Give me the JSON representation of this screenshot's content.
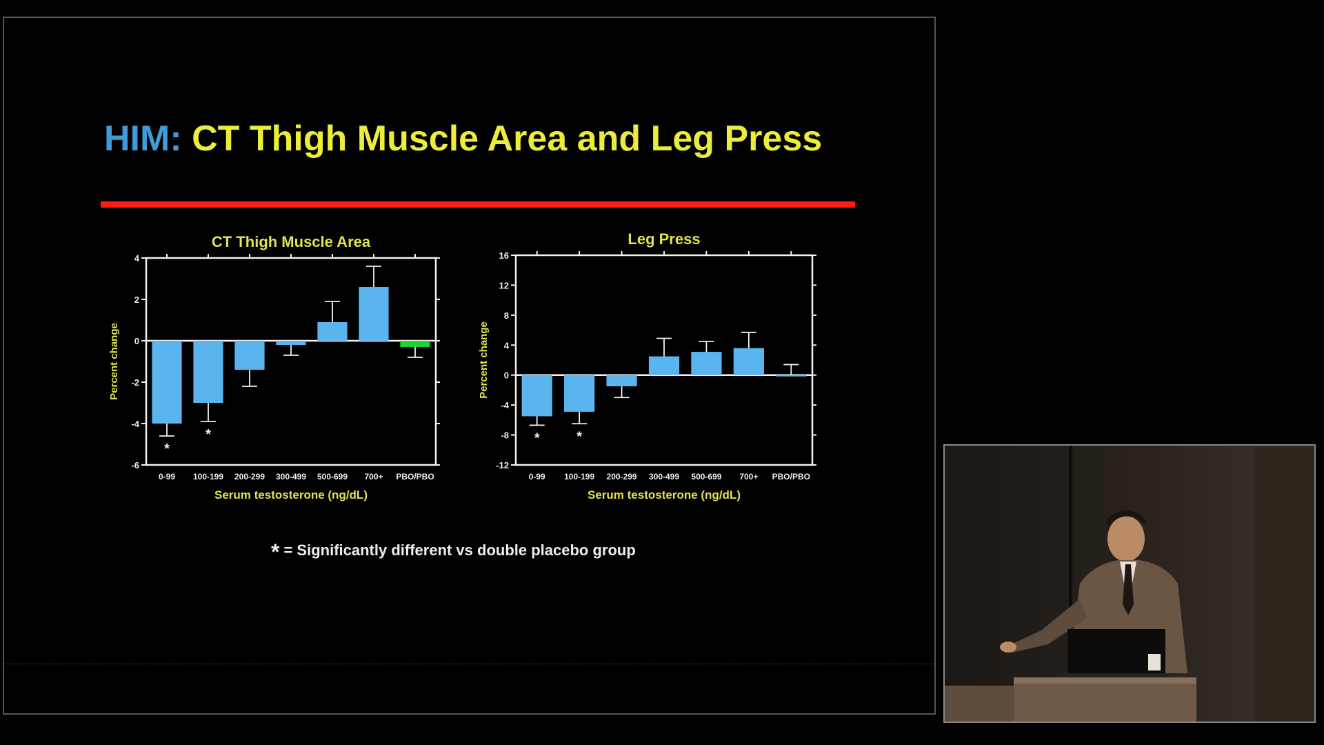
{
  "slide": {
    "title_prefix": "HIM:",
    "title_main": "CT Thigh Muscle Area and Leg Press",
    "footnote_star": "*",
    "footnote_text": "= Significantly different vs double placebo group",
    "colors": {
      "title_blue": "#3f9bda",
      "title_yellow": "#ecec3a",
      "rule": "#ff1a12",
      "bar": "#5ab4ee",
      "placebo_bar": "#1fd52a",
      "axis_text": "#e3e24e"
    }
  },
  "chart_data": [
    {
      "type": "bar",
      "title": "CT Thigh Muscle Area",
      "xlabel": "Serum testosterone (ng/dL)",
      "ylabel": "Percent change",
      "categories": [
        "0-99",
        "100-199",
        "200-299",
        "300-499",
        "500-699",
        "700+",
        "PBO/PBO"
      ],
      "values": [
        -4.0,
        -3.0,
        -1.4,
        -0.2,
        0.9,
        2.6,
        -0.3
      ],
      "errors": [
        0.6,
        0.9,
        0.8,
        0.5,
        1.0,
        1.0,
        0.5
      ],
      "significant": [
        "*",
        "*",
        "",
        "",
        "",
        "",
        ""
      ],
      "bar_colors": [
        "#5ab4ee",
        "#5ab4ee",
        "#5ab4ee",
        "#5ab4ee",
        "#5ab4ee",
        "#5ab4ee",
        "#1fd52a"
      ],
      "ylim": [
        -6,
        4
      ],
      "yticks": [
        "-6",
        "-4",
        "-2",
        "0",
        "2",
        "4"
      ],
      "grid": false
    },
    {
      "type": "bar",
      "title": "Leg Press",
      "xlabel": "Serum testosterone (ng/dL)",
      "ylabel": "Percent change",
      "categories": [
        "0-99",
        "100-199",
        "200-299",
        "300-499",
        "500-699",
        "700+",
        "PBO/PBO"
      ],
      "values": [
        -5.5,
        -4.9,
        -1.5,
        2.5,
        3.1,
        3.6,
        0.0
      ],
      "errors": [
        1.2,
        1.6,
        1.5,
        2.4,
        1.4,
        2.1,
        1.4
      ],
      "significant": [
        "*",
        "*",
        "",
        "",
        "",
        "",
        ""
      ],
      "bar_colors": [
        "#5ab4ee",
        "#5ab4ee",
        "#5ab4ee",
        "#5ab4ee",
        "#5ab4ee",
        "#5ab4ee",
        "#5ab4ee"
      ],
      "ylim": [
        -12,
        16
      ],
      "yticks": [
        "-12",
        "-8",
        "-4",
        "0",
        "4",
        "8",
        "12",
        "16"
      ],
      "grid": false
    }
  ]
}
